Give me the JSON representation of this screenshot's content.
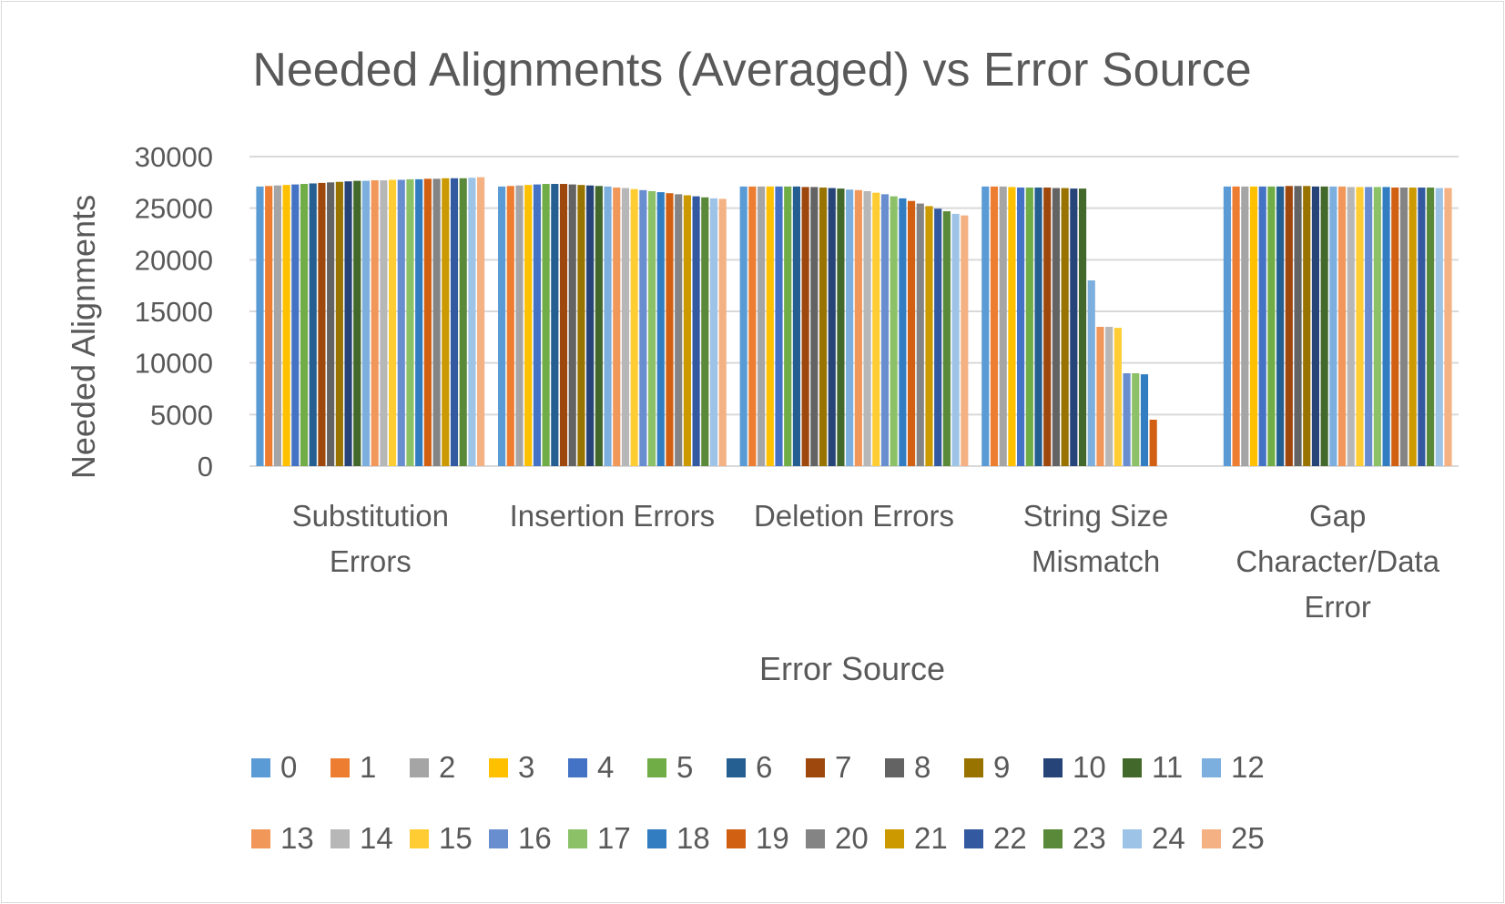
{
  "chart_data": {
    "type": "bar",
    "title": "Needed Alignments (Averaged) vs Error Source",
    "xlabel": "Error Source",
    "ylabel": "Needed Alignments",
    "ylim": [
      0,
      30000
    ],
    "yticks": [
      0,
      5000,
      10000,
      15000,
      20000,
      25000,
      30000
    ],
    "grid": true,
    "legend_position": "bottom",
    "categories": [
      [
        "Substitution",
        "Errors"
      ],
      [
        "Insertion Errors"
      ],
      [
        "Deletion Errors"
      ],
      [
        "String Size",
        "Mismatch"
      ],
      [
        "Gap",
        "Character/Data",
        "Error"
      ]
    ],
    "series": [
      {
        "name": "0",
        "color": "#5B9BD5",
        "values": [
          27100,
          27100,
          27100,
          27100,
          27100
        ]
      },
      {
        "name": "1",
        "color": "#ED7D31",
        "values": [
          27150,
          27150,
          27100,
          27100,
          27100
        ]
      },
      {
        "name": "2",
        "color": "#A5A5A5",
        "values": [
          27200,
          27200,
          27100,
          27100,
          27100
        ]
      },
      {
        "name": "3",
        "color": "#FFC000",
        "values": [
          27250,
          27250,
          27100,
          27050,
          27100
        ]
      },
      {
        "name": "4",
        "color": "#4472C4",
        "values": [
          27300,
          27300,
          27100,
          27000,
          27100
        ]
      },
      {
        "name": "5",
        "color": "#70AD47",
        "values": [
          27350,
          27350,
          27100,
          27000,
          27100
        ]
      },
      {
        "name": "6",
        "color": "#255E91",
        "values": [
          27400,
          27350,
          27100,
          27000,
          27100
        ]
      },
      {
        "name": "7",
        "color": "#9E480E",
        "values": [
          27450,
          27350,
          27050,
          27000,
          27150
        ]
      },
      {
        "name": "8",
        "color": "#636363",
        "values": [
          27500,
          27300,
          27050,
          26950,
          27150
        ]
      },
      {
        "name": "9",
        "color": "#997300",
        "values": [
          27550,
          27250,
          27000,
          26950,
          27150
        ]
      },
      {
        "name": "10",
        "color": "#264478",
        "values": [
          27600,
          27200,
          26950,
          26900,
          27100
        ]
      },
      {
        "name": "11",
        "color": "#43682B",
        "values": [
          27650,
          27150,
          26900,
          26900,
          27100
        ]
      },
      {
        "name": "12",
        "color": "#7CAFDD",
        "values": [
          27650,
          27100,
          26800,
          18000,
          27100
        ]
      },
      {
        "name": "13",
        "color": "#F1975A",
        "values": [
          27700,
          27000,
          26750,
          13500,
          27100
        ]
      },
      {
        "name": "14",
        "color": "#B7B7B7",
        "values": [
          27700,
          26950,
          26650,
          13500,
          27050
        ]
      },
      {
        "name": "15",
        "color": "#FFCD33",
        "values": [
          27750,
          26850,
          26500,
          13400,
          27050
        ]
      },
      {
        "name": "16",
        "color": "#698ED0",
        "values": [
          27750,
          26750,
          26350,
          9000,
          27050
        ]
      },
      {
        "name": "17",
        "color": "#8CC168",
        "values": [
          27800,
          26650,
          26150,
          9000,
          27050
        ]
      },
      {
        "name": "18",
        "color": "#327DC2",
        "values": [
          27800,
          26550,
          25950,
          8900,
          27050
        ]
      },
      {
        "name": "19",
        "color": "#D26012",
        "values": [
          27850,
          26450,
          25700,
          4500,
          27000
        ]
      },
      {
        "name": "20",
        "color": "#848484",
        "values": [
          27850,
          26350,
          25450,
          0,
          27000
        ]
      },
      {
        "name": "21",
        "color": "#CC9A00",
        "values": [
          27900,
          26250,
          25200,
          0,
          27000
        ]
      },
      {
        "name": "22",
        "color": "#335AA1",
        "values": [
          27900,
          26150,
          24950,
          0,
          27000
        ]
      },
      {
        "name": "23",
        "color": "#5A8A39",
        "values": [
          27900,
          26050,
          24700,
          0,
          27000
        ]
      },
      {
        "name": "24",
        "color": "#9DC3E6",
        "values": [
          27950,
          25950,
          24450,
          0,
          26950
        ]
      },
      {
        "name": "25",
        "color": "#F4B183",
        "values": [
          28000,
          25900,
          24300,
          0,
          26950
        ]
      }
    ]
  }
}
